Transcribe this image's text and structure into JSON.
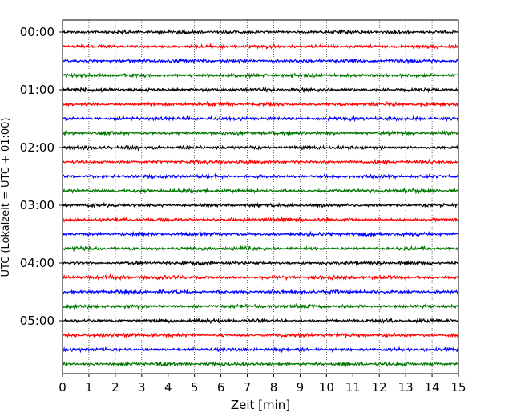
{
  "chart_data": {
    "type": "line",
    "title": "",
    "xlabel": "Zeit  [min]",
    "ylabel": "UTC (Lokalzeit = UTC + 01:00)",
    "xlim": [
      0,
      15
    ],
    "x_ticks": [
      "0",
      "1",
      "2",
      "3",
      "4",
      "5",
      "6",
      "7",
      "8",
      "9",
      "10",
      "11",
      "12",
      "13",
      "14",
      "15"
    ],
    "y_ticks": [
      "00:00",
      "01:00",
      "02:00",
      "03:00",
      "04:00",
      "05:00"
    ],
    "trace_interval_min": 15,
    "trace_count": 24,
    "colors": [
      "#000000",
      "#ff0000",
      "#0000ff",
      "#007700"
    ],
    "grid": "vertical dotted",
    "legend": "none"
  }
}
